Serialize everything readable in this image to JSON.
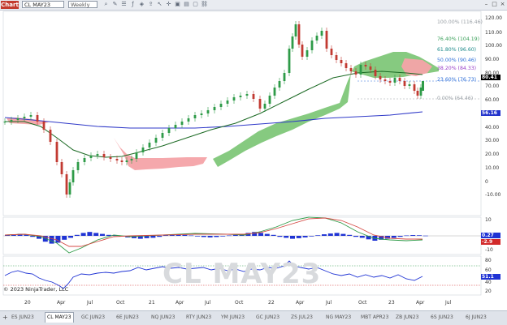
{
  "toolbar": {
    "badge": "Chart",
    "instrument": "CL MAY23",
    "interval": "Weekly",
    "icons": [
      "zoom-icon",
      "draw-icon",
      "properties-icon",
      "indicators-icon",
      "strategy-icon",
      "share-icon",
      "cursor-icon",
      "crosshair-icon",
      "screenshot-icon",
      "data-box-icon",
      "window-icon",
      "link-icon"
    ]
  },
  "window_controls": [
    "minimize-icon",
    "maximize-icon",
    "close-icon"
  ],
  "price_axis": [
    "120.00",
    "110.00",
    "100.00",
    "90.00",
    "80.00",
    "70.00",
    "60.00",
    "50.00",
    "40.00",
    "30.00",
    "20.00",
    "10.00",
    "0",
    "-10.00"
  ],
  "time_axis": [
    "20",
    "Apr",
    "Jul",
    "Oct",
    "21",
    "Apr",
    "Jul",
    "Oct",
    "22",
    "Apr",
    "Jul",
    "Oct",
    "23",
    "Apr",
    "Jul"
  ],
  "fib_levels": [
    {
      "label": "100.00% (116.46)",
      "color": "#9aa0a6"
    },
    {
      "label": "76.40% (104.19)",
      "color": "#3aa05a"
    },
    {
      "label": "61.80% (96.60)",
      "color": "#1d8a8a"
    },
    {
      "label": "50.00% (90.46)",
      "color": "#2e6fd8"
    },
    {
      "label": "38.20% (84.33)",
      "color": "#9a40c8"
    },
    {
      "label": "23.60% (76.73)",
      "color": "#2e6fd8"
    },
    {
      "label": "0.00% (64.46)",
      "color": "#9aa0a6"
    }
  ],
  "price_tags": [
    {
      "label": "80.41",
      "color": "#000000"
    },
    {
      "label": "56.16",
      "color": "#2233cc"
    }
  ],
  "macd_axis": [
    "10",
    "0",
    "-10"
  ],
  "macd_tags": [
    {
      "label": "0.27",
      "color": "#1f33d4"
    },
    {
      "label": "-2.9",
      "color": "#d22a2a"
    }
  ],
  "rsi_axis": [
    "80",
    "60",
    "40",
    "20"
  ],
  "rsi_tag": {
    "label": "51.1",
    "color": "#1f33d4"
  },
  "watermark": "CL MAY23",
  "copyright": "© 2023 NinjaTrader, LLC",
  "tabs": [
    "ES JUN23",
    "CL MAY23",
    "GC JUN23",
    "6E JUN23",
    "NQ JUN23",
    "RTY JUN23",
    "YM JUN23",
    "GC JUN23",
    "ZS JUL23",
    "NG MAY23",
    "MBT APR23",
    "ZB JUN23",
    "6S JUN23",
    "6J JUN23"
  ],
  "active_tab": "CL MAY23",
  "colors": {
    "bull": "#2e9b48",
    "bear": "#c23a32",
    "cloud_bull": "#7fc779",
    "cloud_bear": "#f4a3a8",
    "ma_long": "#2f39c8",
    "ma_short": "#1c6a24",
    "rsi": "#1f33d4"
  }
}
